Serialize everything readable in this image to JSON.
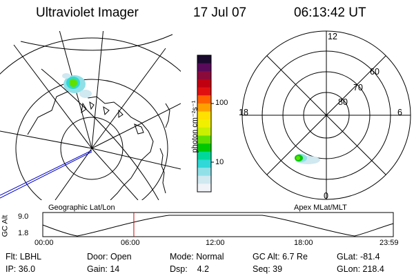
{
  "header": {
    "instrument": "Ultraviolet Imager",
    "date": "17 Jul 07",
    "time": "06:13:42 UT"
  },
  "polar_plot": {
    "mlt_labels": [
      "12",
      "18",
      "6",
      "0"
    ],
    "lat_labels": [
      "60",
      "70",
      "80"
    ]
  },
  "colorbar": {
    "unit_label": "photon cm⁻²s⁻¹",
    "tick_labels": [
      "100",
      "10"
    ],
    "colors": [
      "#1a0a2e",
      "#5a0a5a",
      "#8a0a3a",
      "#c00010",
      "#e01010",
      "#ff6000",
      "#ffa000",
      "#ffe000",
      "#f0f000",
      "#c8f000",
      "#60e000",
      "#00c800",
      "#00d89a",
      "#30d8d8",
      "#90e0e8",
      "#d0e8f0",
      "#f0f4f8"
    ]
  },
  "altitude_plot": {
    "left_caption": "Geographic Lat/Lon",
    "right_caption": "Apex MLat/MLT",
    "axis_title": "GC Alt",
    "y_ticks": [
      "9.0",
      "1.8"
    ],
    "x_ticks": [
      "00:00",
      "06:00",
      "12:00",
      "18:00",
      "23:59"
    ],
    "current_time_marker_hours": 6.23,
    "marker_color": "#d00000"
  },
  "footer": {
    "row1": [
      {
        "key": "flt",
        "text": "Flt: LBHL"
      },
      {
        "key": "door",
        "text": "Door: Open"
      },
      {
        "key": "mode",
        "text": "Mode: Normal"
      },
      {
        "key": "gcalt",
        "text": "GC Alt: 6.7 Re"
      },
      {
        "key": "glat",
        "text": "GLat: -81.4"
      }
    ],
    "row2": [
      {
        "key": "ip",
        "text": "IP: 36.0"
      },
      {
        "key": "gain",
        "text": "Gain: 14"
      },
      {
        "key": "dsp",
        "text": "Dsp:    4.2"
      },
      {
        "key": "seq",
        "text": "Seq: 39"
      },
      {
        "key": "glon",
        "text": "GLon: 218.4"
      }
    ]
  }
}
